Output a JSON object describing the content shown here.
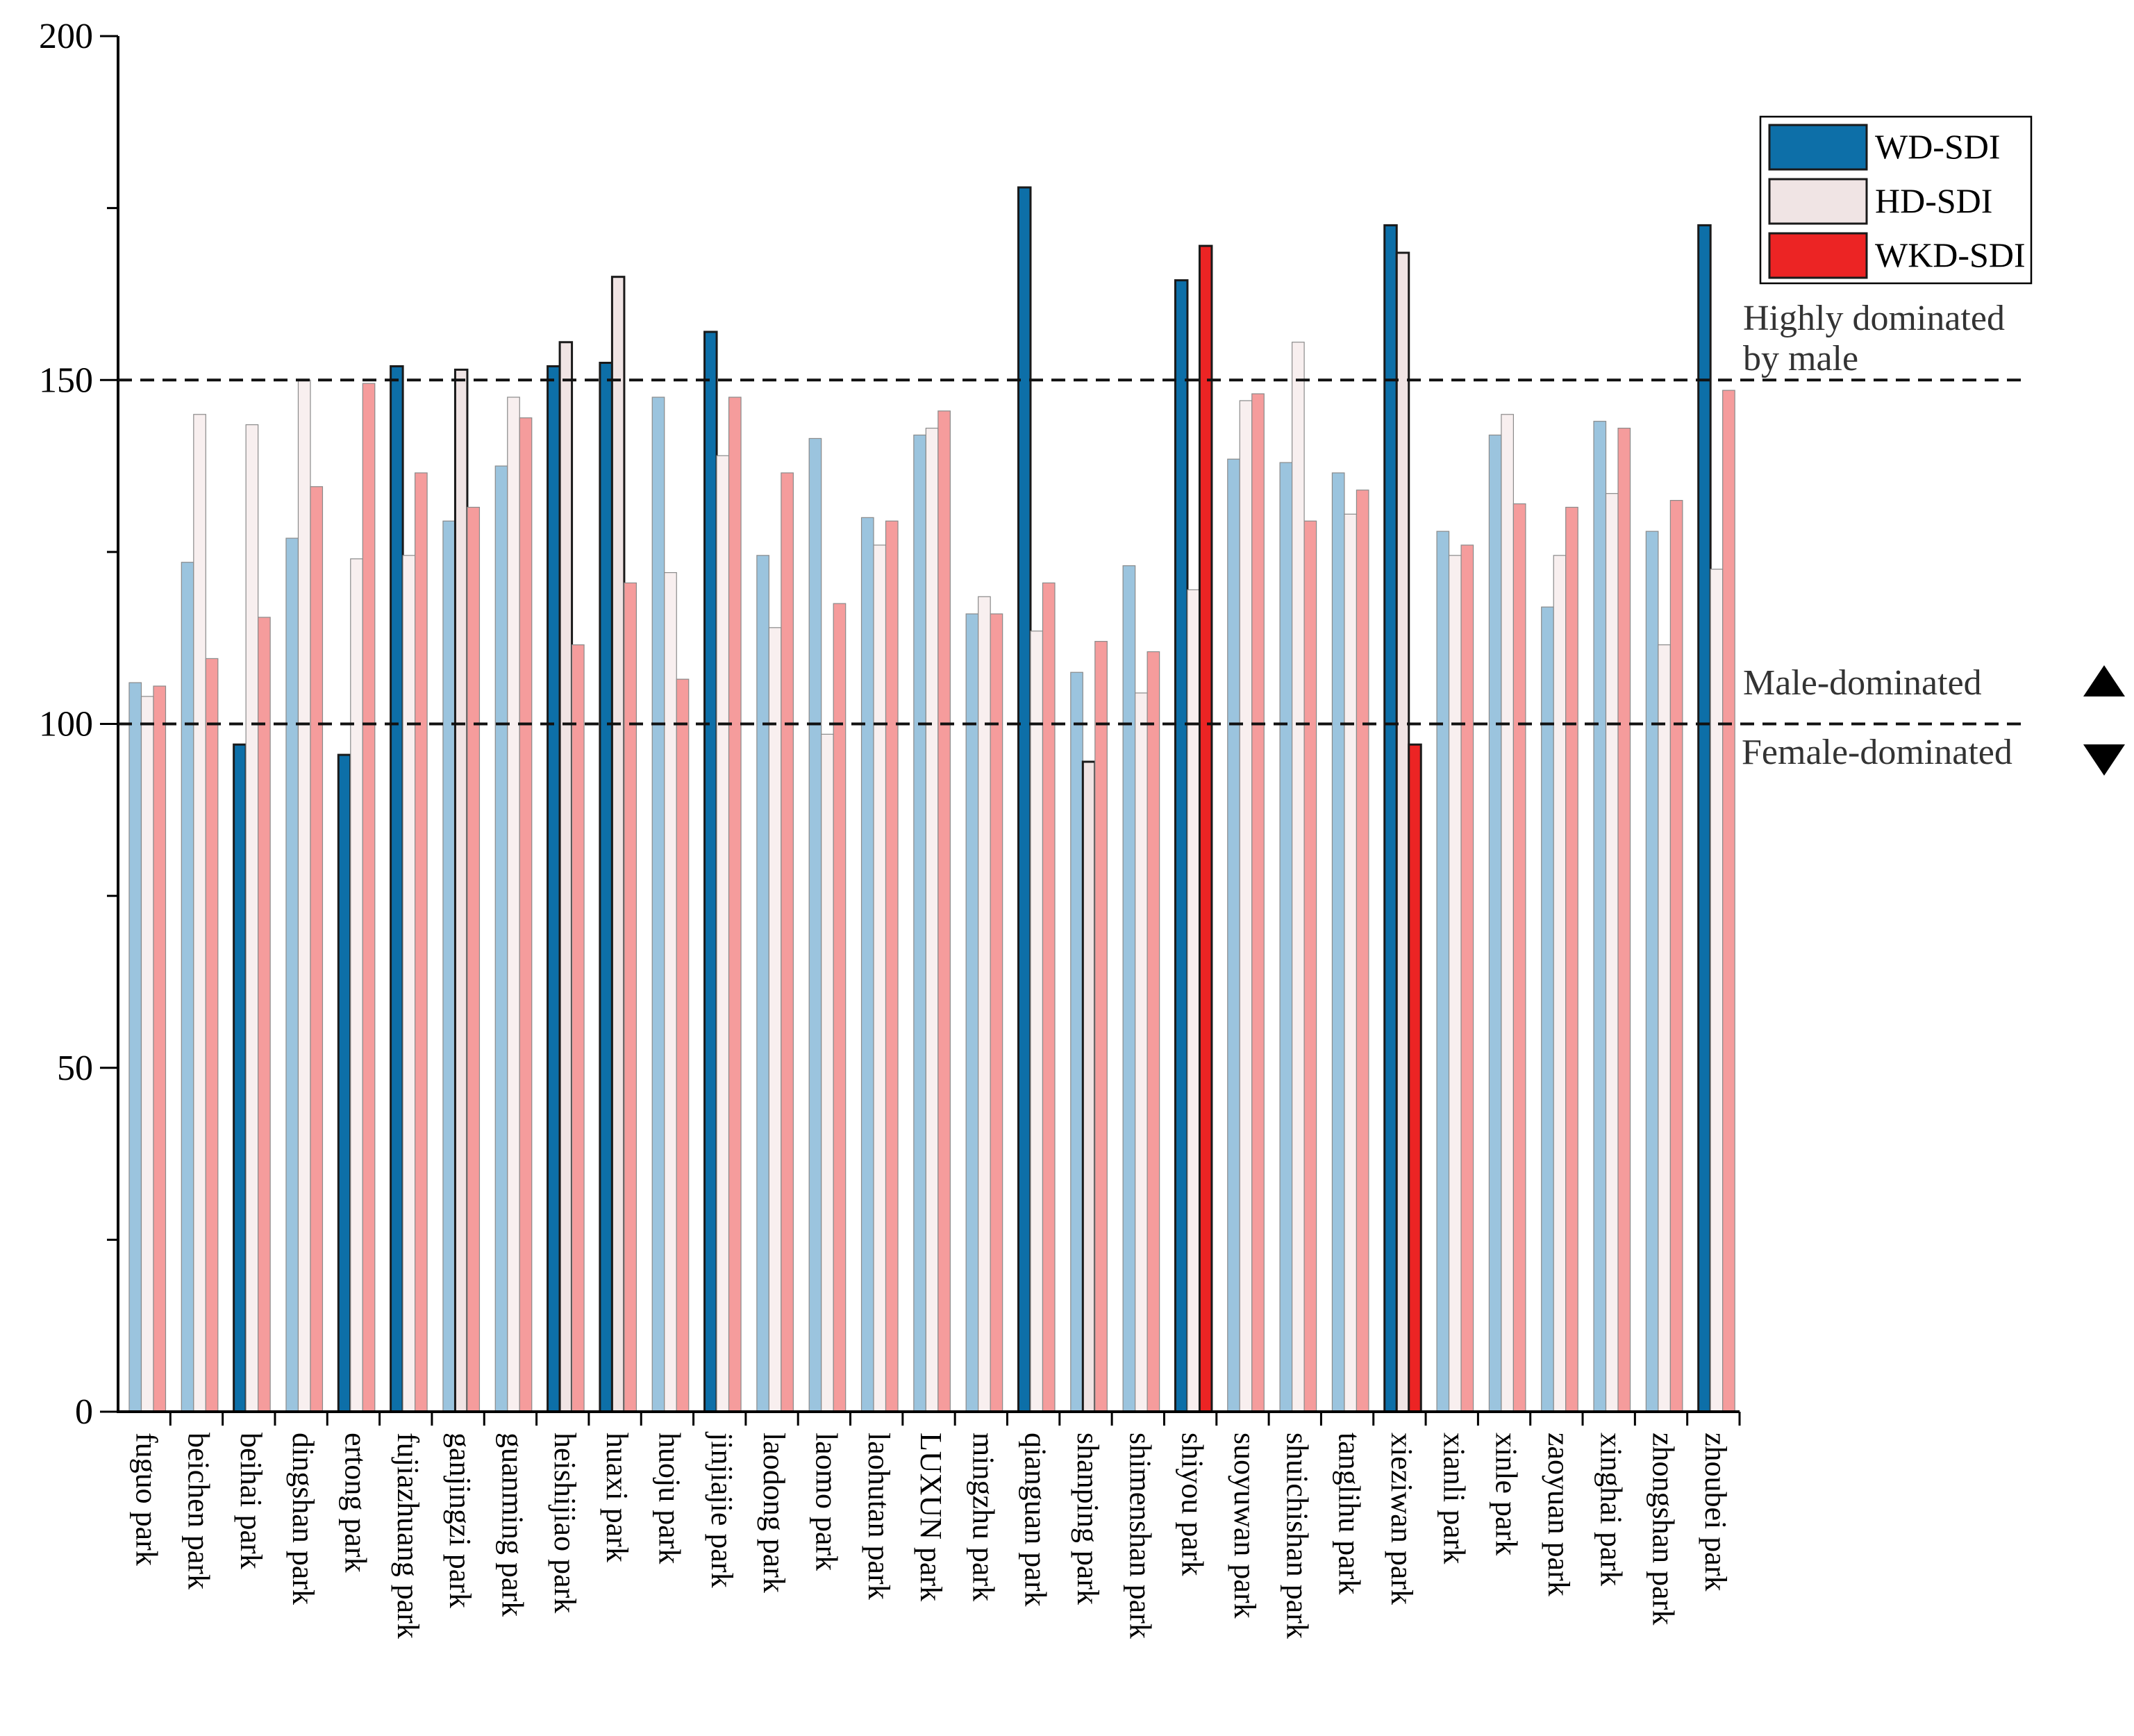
{
  "chart_data": {
    "type": "bar",
    "title": "",
    "xlabel": "",
    "ylabel": "",
    "ylim": [
      0,
      200
    ],
    "yticks": [
      0,
      50,
      100,
      150,
      200
    ],
    "categories": [
      "fuguo park",
      "beichen park",
      "beihai park",
      "dingshan park",
      "ertong park",
      "fujiazhuang park",
      "ganjingzi park",
      "guanming park",
      "heishijiao park",
      "huaxi park",
      "huoju park",
      "jinjiajie park",
      "laodong park",
      "laomo park",
      "laohutan park",
      "LUXUN park",
      "mingzhu park",
      "qianguan park",
      "shanping park",
      "shimenshan park",
      "shiyou park",
      "suoyuwan park",
      "shuichishan park",
      "tanglihu park",
      "xieziwan park",
      "xianli park",
      "xinle park",
      "zaoyuan park",
      "xinghai park",
      "zhongshan park",
      "zhoubei park"
    ],
    "series": [
      {
        "name": "WD-SDI",
        "values": [
          106,
          123.5,
          97,
          127,
          95.5,
          152,
          129.5,
          137.5,
          152,
          152.5,
          147.5,
          157,
          124.5,
          141.5,
          130,
          142,
          116,
          178,
          107.5,
          123,
          164.5,
          138.5,
          138,
          136.5,
          172.5,
          128,
          142,
          117,
          144,
          128,
          172.5
        ]
      },
      {
        "name": "HD-SDI",
        "values": [
          104,
          145,
          143.5,
          150,
          124,
          124.5,
          151.5,
          147.5,
          155.5,
          165,
          122,
          139,
          114,
          98.5,
          126,
          143,
          118.5,
          113.5,
          94.5,
          104.5,
          119.5,
          147,
          155.5,
          130.5,
          168.5,
          124.5,
          145,
          124.5,
          133.5,
          111.5,
          122.5
        ]
      },
      {
        "name": "WKD-SDI",
        "values": [
          105.5,
          109.5,
          115.5,
          134.5,
          149.5,
          136.5,
          131.5,
          144.5,
          111.5,
          120.5,
          106.5,
          147.5,
          136.5,
          117.5,
          129.5,
          145.5,
          116,
          120.5,
          112,
          110.5,
          169.5,
          148,
          129.5,
          134,
          97,
          126,
          132,
          131.5,
          143,
          132.5,
          148.5
        ]
      }
    ],
    "highlighted": {
      "WD-SDI": [
        "beihai park",
        "ertong park",
        "fujiazhuang park",
        "heishijiao park",
        "huaxi park",
        "jinjiajie park",
        "qianguan park",
        "shiyou park",
        "xieziwan park",
        "zhoubei park"
      ],
      "HD-SDI": [
        "ganjingzi park",
        "heishijiao park",
        "huaxi park",
        "shanping park",
        "xieziwan park"
      ],
      "WKD-SDI": [
        "shiyou park",
        "xieziwan park"
      ]
    },
    "colors": {
      "WD-SDI": {
        "light": "#9bc4de",
        "dark": "#0d6fa8"
      },
      "HD-SDI": {
        "light": "#f8efef",
        "dark": "#f0e4e4"
      },
      "WKD-SDI": {
        "light": "#f59c9c",
        "dark": "#ec2424"
      }
    },
    "legend": {
      "position": "top-right",
      "items": [
        "WD-SDI",
        "HD-SDI",
        "WKD-SDI"
      ]
    },
    "reference_lines": [
      {
        "value": 150,
        "style": "dashed",
        "labels": [
          "Highly dominated",
          "by male"
        ]
      },
      {
        "value": 100,
        "style": "dashed",
        "labels": [
          "Male-dominated",
          "Female-dominated"
        ]
      }
    ],
    "annotations": {
      "high_line_1": "Highly dominated",
      "high_line_2": "by male",
      "male": "Male-dominated",
      "female": "Female-dominated"
    }
  }
}
